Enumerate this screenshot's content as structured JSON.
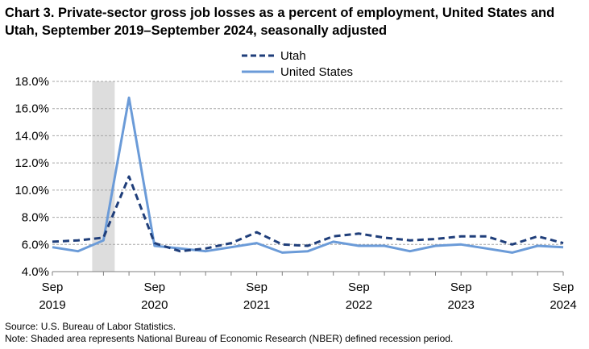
{
  "chart_data": {
    "type": "line",
    "title": "Chart 3. Private-sector gross job losses as a percent of employment, United States and Utah, September 2019–September 2024, seasonally adjusted",
    "x": [
      "Sep 2019",
      "Dec 2019",
      "Mar 2020",
      "Jun 2020",
      "Sep 2020",
      "Dec 2020",
      "Mar 2021",
      "Jun 2021",
      "Sep 2021",
      "Dec 2021",
      "Mar 2022",
      "Jun 2022",
      "Sep 2022",
      "Dec 2022",
      "Mar 2023",
      "Jun 2023",
      "Sep 2023",
      "Dec 2023",
      "Mar 2024",
      "Jun 2024",
      "Sep 2024"
    ],
    "x_tick_labels": [
      {
        "month": "Sep",
        "year": "2019"
      },
      {
        "month": "Sep",
        "year": "2020"
      },
      {
        "month": "Sep",
        "year": "2021"
      },
      {
        "month": "Sep",
        "year": "2022"
      },
      {
        "month": "Sep",
        "year": "2023"
      },
      {
        "month": "Sep",
        "year": "2024"
      }
    ],
    "series": [
      {
        "name": "Utah",
        "style": "dashed",
        "color": "#1f3e7a",
        "values": [
          6.2,
          6.3,
          6.5,
          11.0,
          6.1,
          5.5,
          5.7,
          6.1,
          6.9,
          6.0,
          5.9,
          6.6,
          6.8,
          6.5,
          6.3,
          6.4,
          6.6,
          6.6,
          6.0,
          6.6,
          6.1
        ]
      },
      {
        "name": "United States",
        "style": "solid",
        "color": "#6b9bd8",
        "values": [
          5.8,
          5.5,
          6.3,
          16.8,
          5.9,
          5.7,
          5.5,
          5.8,
          6.1,
          5.4,
          5.5,
          6.2,
          5.9,
          5.9,
          5.5,
          5.9,
          6.0,
          5.7,
          5.4,
          5.9,
          5.8
        ]
      }
    ],
    "ylim": [
      4.0,
      18.0
    ],
    "y_ticks": [
      "4.0%",
      "6.0%",
      "8.0%",
      "10.0%",
      "12.0%",
      "14.0%",
      "16.0%",
      "18.0%"
    ],
    "grid": true,
    "legend_position": "top-center",
    "recession_shade": {
      "start_index": 2,
      "end_index": 3,
      "color": "#dddddd"
    }
  },
  "notes": {
    "source": "Source: U.S. Bureau of Labor Statistics.",
    "note": "Note: Shaded area represents National Bureau of Economic Research (NBER) defined  recession period."
  }
}
